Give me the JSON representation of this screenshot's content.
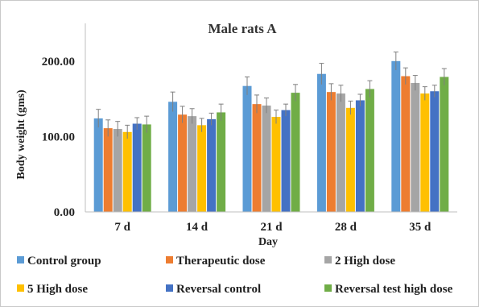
{
  "chart_data": {
    "type": "bar",
    "title": "Male rats A",
    "xlabel": "Day",
    "ylabel": "Body weight (gms)",
    "ylim": [
      0,
      250
    ],
    "yticks": [
      0,
      100,
      200
    ],
    "ytick_labels": [
      "0.00",
      "100.00",
      "200.00"
    ],
    "grid": false,
    "legend_position": "bottom",
    "categories": [
      "7 d",
      "14 d",
      "21 d",
      "28 d",
      "35 d"
    ],
    "series": [
      {
        "name": "Control group",
        "color": "#5b9bd5",
        "values": [
          124,
          146,
          167,
          183,
          200
        ],
        "errors": [
          12,
          13,
          12,
          14,
          12
        ]
      },
      {
        "name": "Therapeutic dose",
        "color": "#ed7d31",
        "values": [
          111,
          129,
          143,
          159,
          180
        ],
        "errors": [
          11,
          11,
          12,
          11,
          11
        ]
      },
      {
        "name": "2 High dose",
        "color": "#a5a5a5",
        "values": [
          110,
          127,
          141,
          157,
          171
        ],
        "errors": [
          10,
          10,
          10,
          11,
          10
        ]
      },
      {
        "name": "5 High dose",
        "color": "#ffc000",
        "values": [
          106,
          115,
          126,
          138,
          157
        ],
        "errors": [
          9,
          9,
          9,
          9,
          9
        ]
      },
      {
        "name": "Reversal control",
        "color": "#4472c4",
        "values": [
          117,
          123,
          135,
          148,
          160
        ],
        "errors": [
          8,
          8,
          8,
          8,
          8
        ]
      },
      {
        "name": "Reversal test high dose",
        "color": "#70ad47",
        "values": [
          116,
          132,
          158,
          163,
          179
        ],
        "errors": [
          11,
          11,
          11,
          11,
          11
        ]
      }
    ]
  }
}
